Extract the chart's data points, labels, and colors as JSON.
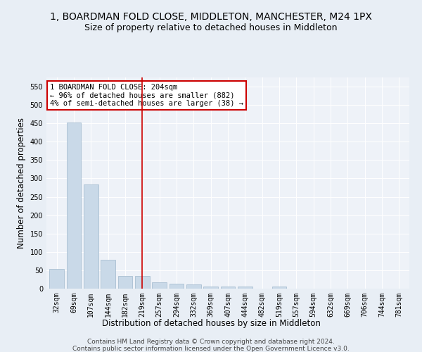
{
  "title1": "1, BOARDMAN FOLD CLOSE, MIDDLETON, MANCHESTER, M24 1PX",
  "title2": "Size of property relative to detached houses in Middleton",
  "xlabel": "Distribution of detached houses by size in Middleton",
  "ylabel": "Number of detached properties",
  "categories": [
    "32sqm",
    "69sqm",
    "107sqm",
    "144sqm",
    "182sqm",
    "219sqm",
    "257sqm",
    "294sqm",
    "332sqm",
    "369sqm",
    "407sqm",
    "444sqm",
    "482sqm",
    "519sqm",
    "557sqm",
    "594sqm",
    "632sqm",
    "669sqm",
    "706sqm",
    "744sqm",
    "781sqm"
  ],
  "values": [
    53,
    452,
    283,
    78,
    34,
    34,
    17,
    14,
    11,
    6,
    5,
    5,
    0,
    5,
    0,
    0,
    0,
    0,
    0,
    0,
    0
  ],
  "bar_color": "#c9d9e8",
  "bar_edgecolor": "#a0b8cc",
  "vline_x": 5.0,
  "vline_color": "#cc0000",
  "annotation_text": "1 BOARDMAN FOLD CLOSE: 204sqm\n← 96% of detached houses are smaller (882)\n4% of semi-detached houses are larger (38) →",
  "annotation_box_color": "#ffffff",
  "annotation_box_edgecolor": "#cc0000",
  "ylim": [
    0,
    575
  ],
  "yticks": [
    0,
    50,
    100,
    150,
    200,
    250,
    300,
    350,
    400,
    450,
    500,
    550
  ],
  "footer1": "Contains HM Land Registry data © Crown copyright and database right 2024.",
  "footer2": "Contains public sector information licensed under the Open Government Licence v3.0.",
  "bg_color": "#e8eef5",
  "plot_bg_color": "#eef2f8",
  "title1_fontsize": 10,
  "title2_fontsize": 9,
  "xlabel_fontsize": 8.5,
  "ylabel_fontsize": 8.5,
  "tick_fontsize": 7,
  "annotation_fontsize": 7.5,
  "footer_fontsize": 6.5
}
